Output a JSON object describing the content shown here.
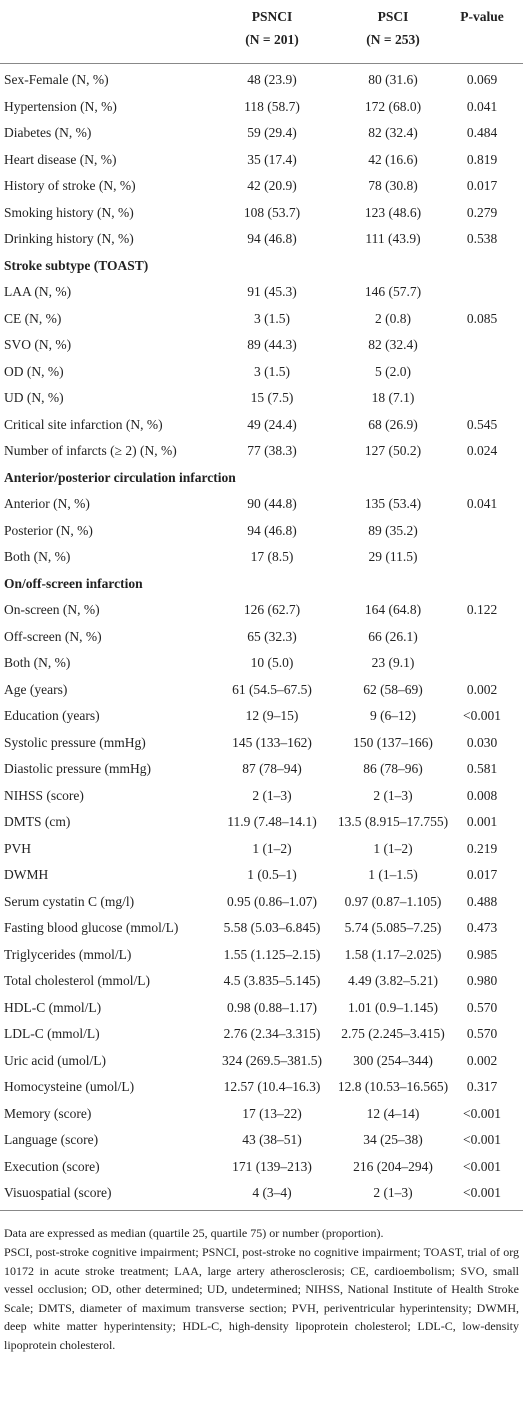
{
  "table": {
    "columns": [
      {
        "line1": "PSNCI",
        "line2": "(N = 201)"
      },
      {
        "line1": "PSCI",
        "line2": "(N = 253)"
      },
      {
        "line1": "P-value"
      }
    ],
    "rows": [
      {
        "label": "Sex-Female (N, %)",
        "cells": [
          "48 (23.9)",
          "80 (31.6)",
          "0.069"
        ]
      },
      {
        "label": "Hypertension (N, %)",
        "cells": [
          "118 (58.7)",
          "172 (68.0)",
          "0.041"
        ]
      },
      {
        "label": "Diabetes (N, %)",
        "cells": [
          "59 (29.4)",
          "82 (32.4)",
          "0.484"
        ]
      },
      {
        "label": "Heart disease (N, %)",
        "cells": [
          "35 (17.4)",
          "42 (16.6)",
          "0.819"
        ]
      },
      {
        "label": "History of stroke (N, %)",
        "cells": [
          "42 (20.9)",
          "78 (30.8)",
          "0.017"
        ]
      },
      {
        "label": "Smoking history (N, %)",
        "cells": [
          "108 (53.7)",
          "123 (48.6)",
          "0.279"
        ]
      },
      {
        "label": "Drinking history (N, %)",
        "cells": [
          "94 (46.8)",
          "111 (43.9)",
          "0.538"
        ]
      },
      {
        "label": "Stroke subtype (TOAST)",
        "section": true
      },
      {
        "label": "LAA (N, %)",
        "cells": [
          "91 (45.3)",
          "146 (57.7)",
          null
        ]
      },
      {
        "label": "CE (N, %)",
        "cells": [
          "3 (1.5)",
          "2 (0.8)",
          "0.085"
        ]
      },
      {
        "label": "SVO (N, %)",
        "cells": [
          "89 (44.3)",
          "82 (32.4)",
          null
        ]
      },
      {
        "label": "OD (N, %)",
        "cells": [
          "3 (1.5)",
          "5 (2.0)",
          null
        ]
      },
      {
        "label": "UD (N, %)",
        "cells": [
          "15 (7.5)",
          "18 (7.1)",
          null
        ]
      },
      {
        "label": "Critical site infarction (N, %)",
        "cells": [
          "49 (24.4)",
          "68 (26.9)",
          "0.545"
        ]
      },
      {
        "label": "Number of infarcts (≥ 2) (N, %)",
        "cells": [
          "77 (38.3)",
          "127 (50.2)",
          "0.024"
        ]
      },
      {
        "label": "Anterior/posterior circulation infarction",
        "section": true
      },
      {
        "label": "Anterior (N, %)",
        "cells": [
          "90 (44.8)",
          "135 (53.4)",
          "0.041"
        ]
      },
      {
        "label": "Posterior (N, %)",
        "cells": [
          "94 (46.8)",
          "89 (35.2)",
          null
        ]
      },
      {
        "label": "Both (N, %)",
        "cells": [
          "17 (8.5)",
          "29 (11.5)",
          null
        ]
      },
      {
        "label": "On/off-screen infarction",
        "section": true
      },
      {
        "label": "On-screen (N, %)",
        "cells": [
          "126 (62.7)",
          "164 (64.8)",
          "0.122"
        ]
      },
      {
        "label": "Off-screen (N, %)",
        "cells": [
          "65 (32.3)",
          "66 (26.1)",
          null
        ]
      },
      {
        "label": "Both (N, %)",
        "cells": [
          "10 (5.0)",
          "23 (9.1)",
          null
        ]
      },
      {
        "label": "Age (years)",
        "cells": [
          "61 (54.5–67.5)",
          "62 (58–69)",
          "0.002"
        ]
      },
      {
        "label": "Education (years)",
        "cells": [
          "12 (9–15)",
          "9 (6–12)",
          "<0.001"
        ]
      },
      {
        "label": "Systolic pressure (mmHg)",
        "cells": [
          "145 (133–162)",
          "150 (137–166)",
          "0.030"
        ]
      },
      {
        "label": "Diastolic pressure (mmHg)",
        "cells": [
          "87 (78–94)",
          "86 (78–96)",
          "0.581"
        ]
      },
      {
        "label": "NIHSS (score)",
        "cells": [
          "2 (1–3)",
          "2 (1–3)",
          "0.008"
        ]
      },
      {
        "label": "DMTS (cm)",
        "cells": [
          "11.9 (7.48–14.1)",
          "13.5 (8.915–17.755)",
          "0.001"
        ]
      },
      {
        "label": "PVH",
        "cells": [
          "1 (1–2)",
          "1 (1–2)",
          "0.219"
        ]
      },
      {
        "label": "DWMH",
        "cells": [
          "1 (0.5–1)",
          "1 (1–1.5)",
          "0.017"
        ]
      },
      {
        "label": "Serum cystatin C (mg/l)",
        "cells": [
          "0.95 (0.86–1.07)",
          "0.97 (0.87–1.105)",
          "0.488"
        ]
      },
      {
        "label": "Fasting blood glucose (mmol/L)",
        "cells": [
          "5.58 (5.03–6.845)",
          "5.74 (5.085–7.25)",
          "0.473"
        ]
      },
      {
        "label": "Triglycerides (mmol/L)",
        "cells": [
          "1.55 (1.125–2.15)",
          "1.58 (1.17–2.025)",
          "0.985"
        ]
      },
      {
        "label": "Total cholesterol (mmol/L)",
        "cells": [
          "4.5 (3.835–5.145)",
          "4.49 (3.82–5.21)",
          "0.980"
        ]
      },
      {
        "label": "HDL-C (mmol/L)",
        "cells": [
          "0.98 (0.88–1.17)",
          "1.01 (0.9–1.145)",
          "0.570"
        ]
      },
      {
        "label": "LDL-C (mmol/L)",
        "cells": [
          "2.76 (2.34–3.315)",
          "2.75 (2.245–3.415)",
          "0.570"
        ]
      },
      {
        "label": "Uric acid (umol/L)",
        "cells": [
          "324 (269.5–381.5)",
          "300 (254–344)",
          "0.002"
        ]
      },
      {
        "label": "Homocysteine (umol/L)",
        "cells": [
          "12.57 (10.4–16.3)",
          "12.8 (10.53–16.565)",
          "0.317"
        ]
      },
      {
        "label": "Memory (score)",
        "cells": [
          "17 (13–22)",
          "12 (4–14)",
          "<0.001"
        ]
      },
      {
        "label": "Language (score)",
        "cells": [
          "43 (38–51)",
          "34 (25–38)",
          "<0.001"
        ]
      },
      {
        "label": "Execution (score)",
        "cells": [
          "171 (139–213)",
          "216 (204–294)",
          "<0.001"
        ]
      },
      {
        "label": "Visuospatial (score)",
        "cells": [
          "4 (3–4)",
          "2 (1–3)",
          "<0.001"
        ]
      }
    ]
  },
  "footnotes": [
    "Data are expressed as median (quartile 25, quartile 75) or number (proportion).",
    "PSCI, post-stroke cognitive impairment; PSNCI, post-stroke no cognitive impairment; TOAST, trial of org 10172 in acute stroke treatment; LAA, large artery atherosclerosis; CE, cardioembolism; SVO, small vessel occlusion; OD, other determined; UD, undetermined; NIHSS, National Institute of Health Stroke Scale; DMTS, diameter of maximum transverse section; PVH, periventricular hyperintensity; DWMH, deep white matter hyperintensity; HDL-C, high-density lipoprotein cholesterol; LDL-C, low-density lipoprotein cholesterol."
  ]
}
